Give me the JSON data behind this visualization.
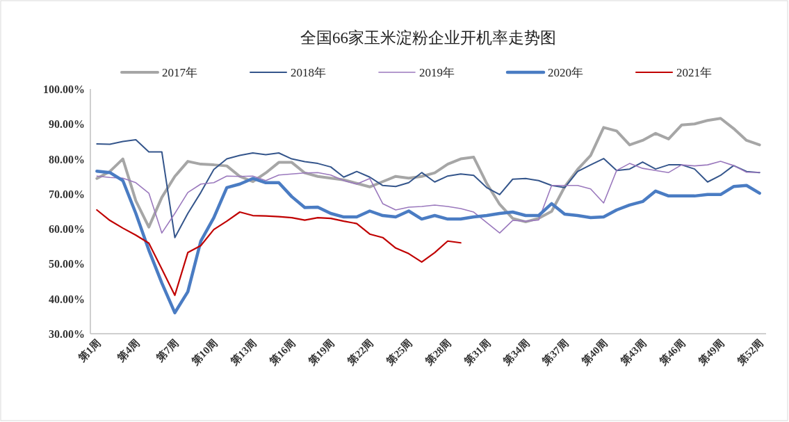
{
  "chart_data": {
    "type": "line",
    "title": "全国66家玉米淀粉企业开机率走势图",
    "categories": [
      "第1周",
      null,
      null,
      "第4周",
      null,
      null,
      "第7周",
      null,
      null,
      "第10周",
      null,
      null,
      "第13周",
      null,
      null,
      "第16周",
      null,
      null,
      "第19周",
      null,
      null,
      "第22周",
      null,
      null,
      "第25周",
      null,
      null,
      "第28周",
      null,
      null,
      "第31周",
      null,
      null,
      "第34周",
      null,
      null,
      "第37周",
      null,
      null,
      "第40周",
      null,
      null,
      "第43周",
      null,
      null,
      "第46周",
      null,
      null,
      "第49周",
      null,
      null,
      "第52周"
    ],
    "ylim": [
      30,
      100
    ],
    "yticks": [
      {
        "value": 30,
        "label": "30.00%"
      },
      {
        "value": 40,
        "label": "40.00%"
      },
      {
        "value": 50,
        "label": "50.00%"
      },
      {
        "value": 60,
        "label": "60.00%"
      },
      {
        "value": 70,
        "label": "70.00%"
      },
      {
        "value": 80,
        "label": "80.00%"
      },
      {
        "value": 90,
        "label": "90.00%"
      },
      {
        "value": 100,
        "label": "100.00%"
      }
    ],
    "legend": "top",
    "series": [
      {
        "name": "2017年",
        "color": "#a6a6a6",
        "values": [
          74.4,
          76.4,
          80,
          68,
          60.5,
          69,
          75,
          79.3,
          78.5,
          78.3,
          78,
          75,
          73.5,
          76,
          79,
          79,
          76,
          75,
          74.5,
          74,
          73,
          72,
          73.5,
          75,
          74.5,
          75,
          76,
          78.5,
          80,
          80.5,
          73,
          67,
          63,
          62,
          63,
          65,
          72,
          77,
          81,
          89,
          88,
          84,
          85.3,
          87.3,
          85.7,
          89.7,
          90,
          91,
          91.6,
          88.7,
          85.3,
          84
        ]
      },
      {
        "name": "2018年",
        "color": "#34558b",
        "values": [
          84.3,
          84.2,
          85,
          85.5,
          82,
          82,
          57.5,
          64.4,
          70.4,
          77,
          80,
          81,
          81.7,
          81.2,
          81.7,
          80,
          79.2,
          78.7,
          77.7,
          74.8,
          76.4,
          74.8,
          72.4,
          72.1,
          73.2,
          76.1,
          73.4,
          75.1,
          75.7,
          75.3,
          71.8,
          69.8,
          74.2,
          74.4,
          73.8,
          72.4,
          71.8,
          76.4,
          78.3,
          80.1,
          76.7,
          77.1,
          79.1,
          77.1,
          78.3,
          78.3,
          77.1,
          73.4,
          75.3,
          78.1,
          76.4,
          76.1
        ]
      },
      {
        "name": "2019年",
        "color": "#9a78bd",
        "values": [
          75.1,
          74.7,
          74.5,
          73.2,
          70.2,
          58.8,
          64.4,
          70.4,
          72.8,
          73.2,
          75.1,
          75,
          75.1,
          73.8,
          75.4,
          75.7,
          76,
          76.1,
          75.4,
          73.8,
          72.8,
          74.4,
          67.2,
          65.4,
          66.2,
          66.4,
          66.8,
          66.4,
          65.8,
          64.8,
          61.8,
          58.8,
          62.4,
          62.2,
          62.5,
          72.4,
          72.4,
          72.4,
          71.4,
          67.4,
          76.7,
          78.7,
          77.3,
          76.7,
          76.1,
          78.3,
          78,
          78.3,
          79.3,
          78.1,
          76.2,
          76.2
        ]
      },
      {
        "name": "2020年",
        "color": "#4a7cc3",
        "values": [
          76.5,
          76.1,
          73.8,
          64.4,
          53.9,
          44.5,
          36,
          42,
          56.5,
          63.2,
          71.8,
          72.8,
          74.4,
          73.2,
          73.2,
          69.2,
          66.1,
          66.2,
          64.4,
          63.4,
          63.4,
          65.1,
          63.8,
          63.4,
          65.1,
          62.8,
          63.8,
          62.8,
          62.8,
          63.4,
          63.8,
          64.4,
          64.8,
          63.8,
          63.8,
          67.2,
          64.2,
          63.8,
          63.2,
          63.4,
          65.4,
          66.8,
          67.8,
          70.8,
          69.4,
          69.4,
          69.4,
          69.8,
          69.8,
          72.1,
          72.4,
          70.2
        ]
      },
      {
        "name": "2021年",
        "color": "#c00000",
        "values": [
          65.4,
          62.4,
          60.2,
          58.2,
          55.9,
          48.5,
          41,
          53.2,
          55.2,
          59.8,
          62.2,
          64.8,
          63.8,
          63.7,
          63.5,
          63.2,
          62.5,
          63.2,
          63,
          62.2,
          61.5,
          58.5,
          57.5,
          54.5,
          52.9,
          50.5,
          53.2,
          56.5,
          56,
          null,
          null,
          null,
          null,
          null,
          null,
          null,
          null,
          null,
          null,
          null,
          null,
          null,
          null,
          null,
          null,
          null,
          null,
          null,
          null,
          null,
          null,
          null
        ]
      }
    ]
  }
}
